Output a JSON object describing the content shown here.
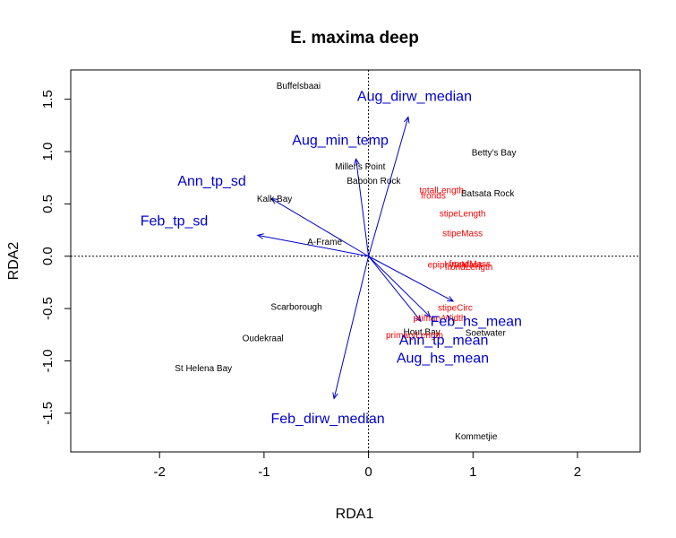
{
  "chart_data": {
    "type": "scatter",
    "title": "E. maxima deep",
    "xlabel": "RDA1",
    "ylabel": "RDA2",
    "xlim": [
      -2.85,
      2.6
    ],
    "ylim": [
      -1.87,
      1.78
    ],
    "x_ticks": [
      -2,
      -1,
      0,
      1,
      2
    ],
    "y_ticks": [
      -1.5,
      -1.0,
      -0.5,
      0.0,
      0.5,
      1.0,
      1.5
    ],
    "x_tick_labels": [
      "-2",
      "-1",
      "0",
      "1",
      "2"
    ],
    "y_tick_labels": [
      "-1.5",
      "-1.0",
      "-0.5",
      "0.0",
      "0.5",
      "1.0",
      "1.5"
    ],
    "zero_lines": true,
    "colors": {
      "sites": "#000000",
      "responses": "#ff0000",
      "environment": "#0000cc",
      "axes": "#000000"
    },
    "sites": [
      {
        "label": "Buffelsbaai",
        "x": -0.67,
        "y": 1.63
      },
      {
        "label": "Betty's Bay",
        "x": 1.2,
        "y": 0.99
      },
      {
        "label": "Miller's Point",
        "x": -0.08,
        "y": 0.86
      },
      {
        "label": "Baboon Rock",
        "x": 0.05,
        "y": 0.72
      },
      {
        "label": "Batsata Rock",
        "x": 1.14,
        "y": 0.6
      },
      {
        "label": "Kalk Bay",
        "x": -0.9,
        "y": 0.55
      },
      {
        "label": "A-Frame",
        "x": -0.42,
        "y": 0.14
      },
      {
        "label": "Scarborough",
        "x": -0.69,
        "y": -0.48
      },
      {
        "label": "Hout Bay",
        "x": 0.51,
        "y": -0.72
      },
      {
        "label": "Soetwater",
        "x": 1.12,
        "y": -0.73
      },
      {
        "label": "Oudekraal",
        "x": -1.01,
        "y": -0.78
      },
      {
        "label": "St Helena Bay",
        "x": -1.58,
        "y": -1.07
      },
      {
        "label": "Kommetjie",
        "x": 1.03,
        "y": -1.72
      }
    ],
    "responses": [
      {
        "label": "totalLength",
        "x": 0.7,
        "y": 0.63
      },
      {
        "label": "fronds",
        "x": 0.62,
        "y": 0.58
      },
      {
        "label": "stipeLength",
        "x": 0.9,
        "y": 0.41
      },
      {
        "label": "stipeMass",
        "x": 0.9,
        "y": 0.22
      },
      {
        "label": "epiphyteMass",
        "x": 0.83,
        "y": -0.08
      },
      {
        "label": "frondMass",
        "x": 0.97,
        "y": -0.07
      },
      {
        "label": "frondLength",
        "x": 0.96,
        "y": -0.1
      },
      {
        "label": "stipeCirc",
        "x": 0.83,
        "y": -0.49
      },
      {
        "label": "primaryWidth",
        "x": 0.68,
        "y": -0.59
      },
      {
        "label": "primaryLength",
        "x": 0.44,
        "y": -0.75
      }
    ],
    "environment": [
      {
        "label": "Aug_dirw_median",
        "x": 0.38,
        "y": 1.33,
        "tx": 0.44,
        "ty": 1.53
      },
      {
        "label": "Aug_min_temp",
        "x": -0.12,
        "y": 0.93,
        "tx": -0.27,
        "ty": 1.11
      },
      {
        "label": "Ann_tp_sd",
        "x": -0.93,
        "y": 0.55,
        "tx": -1.5,
        "ty": 0.72
      },
      {
        "label": "Feb_tp_sd",
        "x": -1.06,
        "y": 0.2,
        "tx": -1.86,
        "ty": 0.34
      },
      {
        "label": "Feb_hs_mean",
        "x": 0.81,
        "y": -0.43,
        "tx": 1.03,
        "ty": -0.62
      },
      {
        "label": "Ann_tp_mean",
        "x": 0.59,
        "y": -0.58,
        "tx": 0.72,
        "ty": -0.8
      },
      {
        "label": "Aug_hs_mean",
        "x": 0.5,
        "y": -0.62,
        "tx": 0.71,
        "ty": -0.97
      },
      {
        "label": "Feb_dirw_median",
        "x": -0.33,
        "y": -1.36,
        "tx": -0.39,
        "ty": -1.55
      }
    ]
  }
}
